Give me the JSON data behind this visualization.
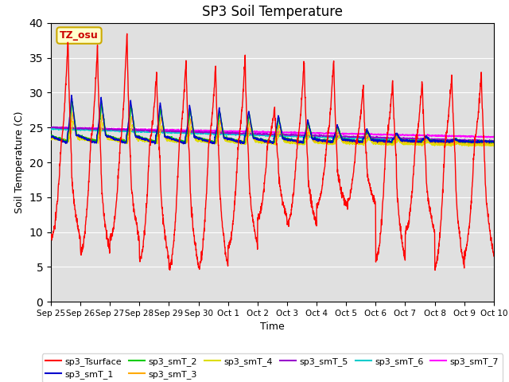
{
  "title": "SP3 Soil Temperature",
  "xlabel": "Time",
  "ylabel": "Soil Temperature (C)",
  "ylim": [
    0,
    40
  ],
  "annotation_text": "TZ_osu",
  "annotation_color": "#cc0000",
  "background_color": "#e0e0e0",
  "legend": [
    {
      "label": "sp3_Tsurface",
      "color": "#ff0000",
      "lw": 1.2
    },
    {
      "label": "sp3_smT_1",
      "color": "#0000cc",
      "lw": 1.2
    },
    {
      "label": "sp3_smT_2",
      "color": "#00cc00",
      "lw": 1.2
    },
    {
      "label": "sp3_smT_3",
      "color": "#ffaa00",
      "lw": 1.2
    },
    {
      "label": "sp3_smT_4",
      "color": "#dddd00",
      "lw": 1.2
    },
    {
      "label": "sp3_smT_5",
      "color": "#9900cc",
      "lw": 1.2
    },
    {
      "label": "sp3_smT_6",
      "color": "#00cccc",
      "lw": 1.2
    },
    {
      "label": "sp3_smT_7",
      "color": "#ff00ff",
      "lw": 1.2
    }
  ],
  "num_days": 15,
  "tick_labels": [
    "Sep 25",
    "Sep 26",
    "Sep 27",
    "Sep 28",
    "Sep 29",
    "Sep 30",
    "Oct 1",
    "Oct 2",
    "Oct 3",
    "Oct 4",
    "Oct 5",
    "Oct 6",
    "Oct 7",
    "Oct 8",
    "Oct 9",
    "Oct 10"
  ]
}
